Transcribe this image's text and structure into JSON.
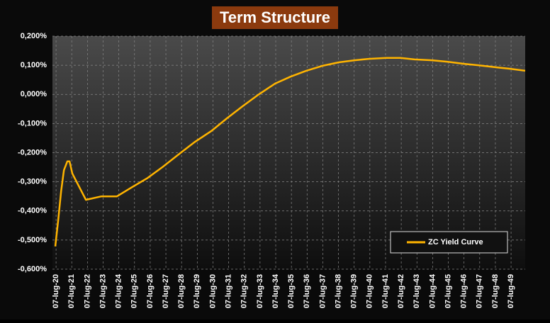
{
  "chart_data": {
    "type": "line",
    "title": "Term Structure",
    "x": [
      2019.95,
      2020.14,
      2020.32,
      2020.5,
      2020.72,
      2020.86,
      2021.04,
      2021.9,
      2022.89,
      2023.88,
      2024.79,
      2025.83,
      2026.82,
      2027.81,
      2028.85,
      2029.89,
      2030.89,
      2031.88,
      2032.92,
      2033.96,
      2034.95,
      2035.94,
      2036.98,
      2038.02,
      2039.02,
      2039.92,
      2041.05,
      2041.95,
      2042.85,
      2043.98,
      2044.97,
      2046.01,
      2046.91,
      2048.04,
      2048.95,
      2049.9
    ],
    "series": [
      {
        "name": "ZC Yield Curve",
        "color": "#ffb400",
        "values": [
          -0.522,
          -0.43,
          -0.333,
          -0.26,
          -0.23,
          -0.23,
          -0.272,
          -0.362,
          -0.35,
          -0.35,
          -0.32,
          -0.287,
          -0.248,
          -0.206,
          -0.163,
          -0.126,
          -0.082,
          -0.041,
          0.0,
          0.037,
          0.061,
          0.081,
          0.098,
          0.11,
          0.117,
          0.122,
          0.125,
          0.125,
          0.12,
          0.117,
          0.112,
          0.105,
          0.1,
          0.093,
          0.088,
          0.081
        ]
      }
    ],
    "xlim": [
      2019.77,
      2049.9
    ],
    "xticks": [
      {
        "value": 2020,
        "label": "07-lug-20"
      },
      {
        "value": 2021,
        "label": "07-lug-21"
      },
      {
        "value": 2022,
        "label": "07-lug-22"
      },
      {
        "value": 2023,
        "label": "07-lug-23"
      },
      {
        "value": 2024,
        "label": "07-lug-24"
      },
      {
        "value": 2025,
        "label": "07-lug-25"
      },
      {
        "value": 2026,
        "label": "07-lug-26"
      },
      {
        "value": 2027,
        "label": "07-lug-27"
      },
      {
        "value": 2028,
        "label": "07-lug-28"
      },
      {
        "value": 2029,
        "label": "07-lug-29"
      },
      {
        "value": 2030,
        "label": "07-lug-30"
      },
      {
        "value": 2031,
        "label": "07-lug-31"
      },
      {
        "value": 2032,
        "label": "07-lug-32"
      },
      {
        "value": 2033,
        "label": "07-lug-33"
      },
      {
        "value": 2034,
        "label": "07-lug-34"
      },
      {
        "value": 2035,
        "label": "07-lug-35"
      },
      {
        "value": 2036,
        "label": "07-lug-36"
      },
      {
        "value": 2037,
        "label": "07-lug-37"
      },
      {
        "value": 2038,
        "label": "07-lug-38"
      },
      {
        "value": 2039,
        "label": "07-lug-39"
      },
      {
        "value": 2040,
        "label": "07-lug-40"
      },
      {
        "value": 2041,
        "label": "07-lug-41"
      },
      {
        "value": 2042,
        "label": "07-lug-42"
      },
      {
        "value": 2043,
        "label": "07-lug-43"
      },
      {
        "value": 2044,
        "label": "07-lug-44"
      },
      {
        "value": 2045,
        "label": "07-lug-45"
      },
      {
        "value": 2046,
        "label": "07-lug-46"
      },
      {
        "value": 2047,
        "label": "07-lug-47"
      },
      {
        "value": 2048,
        "label": "07-lug-48"
      },
      {
        "value": 2049,
        "label": "07-lug-49"
      }
    ],
    "ylim": [
      -0.6,
      0.2
    ],
    "yticks": [
      {
        "value": -0.6,
        "label": "-0,600%"
      },
      {
        "value": -0.5,
        "label": "-0,500%"
      },
      {
        "value": -0.4,
        "label": "-0,400%"
      },
      {
        "value": -0.3,
        "label": "-0,300%"
      },
      {
        "value": -0.2,
        "label": "-0,200%"
      },
      {
        "value": -0.1,
        "label": "-0,100%"
      },
      {
        "value": 0.0,
        "label": "0,000%"
      },
      {
        "value": 0.1,
        "label": "0,100%"
      },
      {
        "value": 0.2,
        "label": "0,200%"
      }
    ],
    "grid": true
  }
}
